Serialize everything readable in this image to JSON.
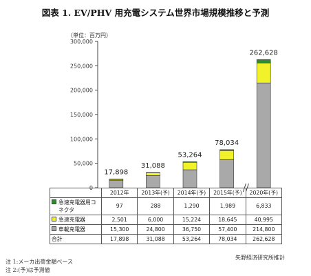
{
  "title": "図表 1. EV/PHV 用充電システム世界市場規模推移と予測",
  "unit_label": "（単位：百万円）",
  "notes": [
    "注 1:メーカ出荷金額ベース",
    "注 2:(予)は予測値"
  ],
  "source": "矢野経済研究所推計",
  "colors": {
    "connector": "#2e8b2e",
    "quick": "#f2f22a",
    "onboard": "#a9a9a9"
  },
  "chart_data": {
    "type": "bar",
    "stacked": true,
    "categories": [
      "2012年",
      "2013年(予)",
      "2014年(予)",
      "2015年(予)",
      "2020年(予)"
    ],
    "series": [
      {
        "name": "車載充電器",
        "values": [
          15300,
          24800,
          36750,
          57400,
          214800
        ],
        "color": "#a9a9a9"
      },
      {
        "name": "急速充電器",
        "values": [
          2501,
          6000,
          15224,
          18645,
          40995
        ],
        "color": "#f2f22a"
      },
      {
        "name": "急速充電器用コネクタ",
        "values": [
          97,
          288,
          1290,
          1989,
          6833
        ],
        "color": "#2e8b2e"
      }
    ],
    "totals": [
      17898,
      31088,
      53264,
      78034,
      262628
    ],
    "total_labels": [
      "17,898",
      "31,088",
      "53,264",
      "78,034",
      "262,628"
    ],
    "yticks": [
      "0",
      "50,000",
      "100,000",
      "150,000",
      "200,000",
      "250,000",
      "300,000"
    ],
    "ylim": [
      0,
      300000
    ],
    "axis_break_between": [
      "2015年(予)",
      "2020年(予)"
    ],
    "grid": false
  },
  "table": {
    "header": [
      "",
      "2012年",
      "2013年(予)",
      "2014年(予)",
      "2015年(予)",
      "2020年(予)"
    ],
    "rows": [
      {
        "label": "急速充電器用コネクタ",
        "color": "#2e8b2e",
        "values": [
          "97",
          "288",
          "1,290",
          "1,989",
          "6,833"
        ]
      },
      {
        "label": "急速充電器",
        "color": "#f2f22a",
        "values": [
          "2,501",
          "6,000",
          "15,224",
          "18,645",
          "40,995"
        ]
      },
      {
        "label": "車載充電器",
        "color": "#a9a9a9",
        "values": [
          "15,300",
          "24,800",
          "36,750",
          "57,400",
          "214,800"
        ]
      },
      {
        "label": "合計",
        "color": "",
        "values": [
          "17,898",
          "31,088",
          "53,264",
          "78,034",
          "262,628"
        ]
      }
    ]
  }
}
